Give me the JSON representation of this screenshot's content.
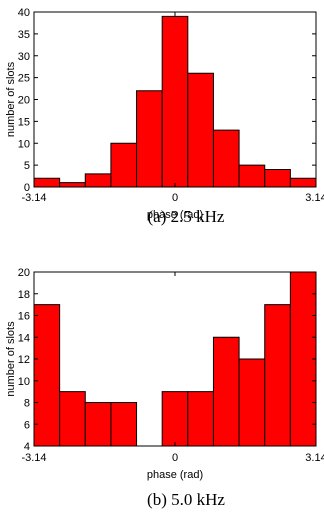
{
  "chart_data": [
    {
      "type": "bar",
      "caption": "(a) 2.5 kHz",
      "xlabel": "phase (rad)",
      "ylabel": "number of slots",
      "x_tick_labels": [
        "-3.14",
        "0",
        "3.14"
      ],
      "xlim": [
        -3.14,
        3.14
      ],
      "ylim": [
        0,
        40
      ],
      "yticks": [
        0,
        5,
        10,
        15,
        20,
        25,
        30,
        35,
        40
      ],
      "bar_color": "#ff0000",
      "values": [
        2,
        1,
        3,
        10,
        22,
        39,
        26,
        13,
        5,
        4,
        2
      ]
    },
    {
      "type": "bar",
      "caption": "(b) 5.0 kHz",
      "xlabel": "phase (rad)",
      "ylabel": "number of slots",
      "x_tick_labels": [
        "-3.14",
        "0",
        "3.14"
      ],
      "xlim": [
        -3.14,
        3.14
      ],
      "ylim": [
        4,
        20
      ],
      "yticks": [
        4,
        6,
        8,
        10,
        12,
        14,
        16,
        18,
        20
      ],
      "bar_color": "#ff0000",
      "values": [
        17,
        9,
        8,
        8,
        4,
        9,
        9,
        14,
        12,
        17,
        20
      ]
    }
  ]
}
